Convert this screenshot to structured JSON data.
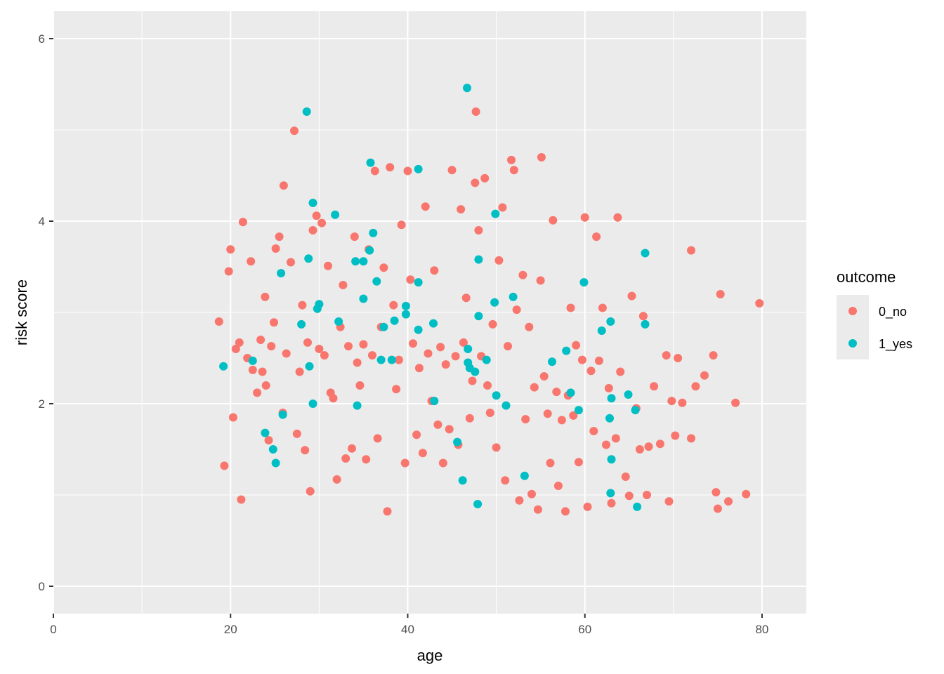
{
  "chart_data": {
    "type": "scatter",
    "xlabel": "age",
    "ylabel": "risk score",
    "xlim": [
      0,
      85
    ],
    "ylim": [
      -0.3,
      6.3
    ],
    "x_ticks": [
      0,
      20,
      40,
      60,
      80
    ],
    "y_ticks": [
      0,
      2,
      4,
      6
    ],
    "x_tick_labels": [
      "0",
      "20",
      "40",
      "60",
      "80"
    ],
    "y_tick_labels": [
      "0",
      "2",
      "4",
      "6"
    ],
    "grid": true,
    "legend": {
      "title": "outcome",
      "position": "right"
    },
    "series": [
      {
        "name": "0_no",
        "color": "#F8766D",
        "points": [
          [
            18.7,
            2.9
          ],
          [
            19.3,
            1.32
          ],
          [
            19.8,
            3.45
          ],
          [
            20.0,
            3.69
          ],
          [
            20.3,
            1.85
          ],
          [
            20.6,
            2.6
          ],
          [
            21.0,
            2.67
          ],
          [
            21.2,
            0.95
          ],
          [
            21.4,
            3.99
          ],
          [
            21.9,
            2.5
          ],
          [
            22.3,
            3.56
          ],
          [
            22.5,
            2.37
          ],
          [
            23.0,
            2.12
          ],
          [
            23.4,
            2.7
          ],
          [
            23.6,
            2.35
          ],
          [
            23.9,
            3.17
          ],
          [
            24.0,
            2.2
          ],
          [
            24.3,
            1.6
          ],
          [
            24.6,
            2.63
          ],
          [
            24.9,
            2.89
          ],
          [
            25.1,
            3.7
          ],
          [
            25.5,
            3.83
          ],
          [
            25.9,
            1.9
          ],
          [
            26.0,
            4.39
          ],
          [
            26.3,
            2.55
          ],
          [
            26.8,
            3.55
          ],
          [
            27.2,
            4.99
          ],
          [
            27.5,
            1.67
          ],
          [
            27.8,
            2.35
          ],
          [
            28.1,
            3.08
          ],
          [
            28.4,
            1.49
          ],
          [
            28.7,
            2.67
          ],
          [
            29.0,
            1.04
          ],
          [
            29.3,
            3.9
          ],
          [
            29.7,
            4.06
          ],
          [
            30.0,
            2.6
          ],
          [
            30.3,
            3.98
          ],
          [
            30.6,
            2.53
          ],
          [
            31.0,
            3.51
          ],
          [
            31.3,
            2.12
          ],
          [
            31.6,
            2.06
          ],
          [
            32.0,
            1.17
          ],
          [
            32.4,
            2.84
          ],
          [
            32.7,
            3.3
          ],
          [
            33.0,
            1.4
          ],
          [
            33.3,
            2.63
          ],
          [
            33.7,
            1.51
          ],
          [
            34.0,
            3.83
          ],
          [
            34.3,
            2.45
          ],
          [
            34.6,
            2.2
          ],
          [
            35.0,
            2.65
          ],
          [
            35.3,
            1.39
          ],
          [
            35.6,
            3.69
          ],
          [
            36.0,
            2.53
          ],
          [
            36.3,
            4.55
          ],
          [
            36.6,
            1.62
          ],
          [
            37.0,
            2.84
          ],
          [
            37.3,
            3.49
          ],
          [
            37.7,
            0.82
          ],
          [
            38.0,
            4.59
          ],
          [
            38.4,
            3.08
          ],
          [
            38.7,
            2.16
          ],
          [
            39.0,
            2.48
          ],
          [
            39.3,
            3.96
          ],
          [
            39.7,
            1.35
          ],
          [
            40.0,
            4.55
          ],
          [
            40.3,
            3.36
          ],
          [
            40.6,
            2.66
          ],
          [
            41.0,
            1.66
          ],
          [
            41.3,
            2.39
          ],
          [
            41.7,
            1.46
          ],
          [
            42.0,
            4.16
          ],
          [
            42.3,
            2.55
          ],
          [
            42.7,
            2.03
          ],
          [
            43.0,
            3.46
          ],
          [
            43.4,
            1.77
          ],
          [
            43.7,
            2.62
          ],
          [
            44.0,
            1.35
          ],
          [
            44.3,
            2.43
          ],
          [
            44.7,
            1.72
          ],
          [
            45.0,
            4.56
          ],
          [
            45.4,
            2.52
          ],
          [
            45.7,
            1.55
          ],
          [
            46.0,
            4.13
          ],
          [
            46.3,
            2.67
          ],
          [
            46.6,
            3.16
          ],
          [
            47.0,
            1.84
          ],
          [
            47.3,
            2.25
          ],
          [
            47.6,
            4.42
          ],
          [
            47.7,
            5.2
          ],
          [
            48.0,
            3.9
          ],
          [
            48.3,
            2.52
          ],
          [
            48.7,
            4.47
          ],
          [
            49.0,
            2.2
          ],
          [
            49.3,
            1.9
          ],
          [
            49.6,
            2.87
          ],
          [
            50.0,
            1.52
          ],
          [
            50.3,
            3.57
          ],
          [
            50.7,
            4.15
          ],
          [
            51.0,
            1.16
          ],
          [
            51.3,
            2.63
          ],
          [
            51.7,
            4.67
          ],
          [
            52.0,
            4.56
          ],
          [
            52.3,
            3.03
          ],
          [
            52.6,
            0.94
          ],
          [
            53.0,
            3.41
          ],
          [
            53.3,
            1.83
          ],
          [
            53.7,
            2.84
          ],
          [
            54.0,
            1.01
          ],
          [
            54.3,
            2.18
          ],
          [
            54.7,
            0.84
          ],
          [
            55.0,
            3.35
          ],
          [
            55.1,
            4.7
          ],
          [
            55.4,
            2.3
          ],
          [
            55.8,
            1.89
          ],
          [
            56.1,
            1.35
          ],
          [
            56.4,
            4.01
          ],
          [
            56.8,
            2.13
          ],
          [
            57.0,
            1.1
          ],
          [
            57.4,
            1.82
          ],
          [
            57.8,
            0.82
          ],
          [
            58.1,
            2.09
          ],
          [
            58.4,
            3.05
          ],
          [
            58.7,
            1.87
          ],
          [
            59.0,
            2.64
          ],
          [
            59.3,
            1.36
          ],
          [
            59.7,
            2.48
          ],
          [
            60.0,
            4.04
          ],
          [
            60.3,
            0.87
          ],
          [
            60.7,
            2.36
          ],
          [
            61.0,
            1.7
          ],
          [
            61.3,
            3.83
          ],
          [
            61.6,
            2.47
          ],
          [
            62.0,
            3.05
          ],
          [
            62.4,
            1.55
          ],
          [
            62.7,
            2.17
          ],
          [
            63.0,
            0.91
          ],
          [
            63.5,
            1.62
          ],
          [
            63.7,
            4.04
          ],
          [
            64.0,
            2.35
          ],
          [
            64.6,
            1.2
          ],
          [
            65.0,
            0.99
          ],
          [
            65.3,
            3.18
          ],
          [
            65.8,
            1.95
          ],
          [
            66.2,
            1.5
          ],
          [
            66.6,
            2.96
          ],
          [
            67.0,
            1.0
          ],
          [
            67.2,
            1.53
          ],
          [
            67.8,
            2.19
          ],
          [
            68.5,
            1.56
          ],
          [
            69.2,
            2.53
          ],
          [
            69.5,
            0.93
          ],
          [
            69.8,
            2.03
          ],
          [
            70.2,
            1.65
          ],
          [
            70.5,
            2.5
          ],
          [
            71.0,
            2.01
          ],
          [
            72.0,
            3.68
          ],
          [
            72.0,
            1.62
          ],
          [
            72.5,
            2.19
          ],
          [
            73.5,
            2.31
          ],
          [
            74.5,
            2.53
          ],
          [
            74.8,
            1.03
          ],
          [
            75.0,
            0.85
          ],
          [
            75.3,
            3.2
          ],
          [
            76.2,
            0.93
          ],
          [
            77.0,
            2.01
          ],
          [
            78.2,
            1.01
          ],
          [
            79.7,
            3.1
          ]
        ]
      },
      {
        "name": "1_yes",
        "color": "#00BFC4",
        "points": [
          [
            19.2,
            2.41
          ],
          [
            22.5,
            2.47
          ],
          [
            23.9,
            1.68
          ],
          [
            24.8,
            1.5
          ],
          [
            25.1,
            1.35
          ],
          [
            25.7,
            3.43
          ],
          [
            25.9,
            1.88
          ],
          [
            28.0,
            2.87
          ],
          [
            28.6,
            5.2
          ],
          [
            28.8,
            3.59
          ],
          [
            28.9,
            2.41
          ],
          [
            29.3,
            2.0
          ],
          [
            29.3,
            4.2
          ],
          [
            29.8,
            3.04
          ],
          [
            30.0,
            3.09
          ],
          [
            31.8,
            4.07
          ],
          [
            32.2,
            2.9
          ],
          [
            34.1,
            3.56
          ],
          [
            34.3,
            1.98
          ],
          [
            35.0,
            3.15
          ],
          [
            35.0,
            3.56
          ],
          [
            35.7,
            3.68
          ],
          [
            35.8,
            4.64
          ],
          [
            36.1,
            3.87
          ],
          [
            36.5,
            3.34
          ],
          [
            37.0,
            2.48
          ],
          [
            37.3,
            2.84
          ],
          [
            38.2,
            2.48
          ],
          [
            38.5,
            2.91
          ],
          [
            39.8,
            3.07
          ],
          [
            39.8,
            2.98
          ],
          [
            41.2,
            3.33
          ],
          [
            41.2,
            4.57
          ],
          [
            41.2,
            2.81
          ],
          [
            42.9,
            2.88
          ],
          [
            43.0,
            2.03
          ],
          [
            45.6,
            1.58
          ],
          [
            46.2,
            1.16
          ],
          [
            46.8,
            2.45
          ],
          [
            46.8,
            2.6
          ],
          [
            47.0,
            2.39
          ],
          [
            46.7,
            5.46
          ],
          [
            47.6,
            2.35
          ],
          [
            47.9,
            0.9
          ],
          [
            48.0,
            3.58
          ],
          [
            48.0,
            2.96
          ],
          [
            48.9,
            2.48
          ],
          [
            49.8,
            3.11
          ],
          [
            49.9,
            4.08
          ],
          [
            50.0,
            2.09
          ],
          [
            51.1,
            1.98
          ],
          [
            51.9,
            3.17
          ],
          [
            53.2,
            1.21
          ],
          [
            56.3,
            2.46
          ],
          [
            57.9,
            2.58
          ],
          [
            58.4,
            2.12
          ],
          [
            59.3,
            1.93
          ],
          [
            59.9,
            3.33
          ],
          [
            61.9,
            2.8
          ],
          [
            62.8,
            1.84
          ],
          [
            62.9,
            2.9
          ],
          [
            63.0,
            1.39
          ],
          [
            63.0,
            2.06
          ],
          [
            62.9,
            1.02
          ],
          [
            64.9,
            2.1
          ],
          [
            65.7,
            1.93
          ],
          [
            65.9,
            0.87
          ],
          [
            66.8,
            3.65
          ],
          [
            66.8,
            2.87
          ]
        ]
      }
    ]
  }
}
